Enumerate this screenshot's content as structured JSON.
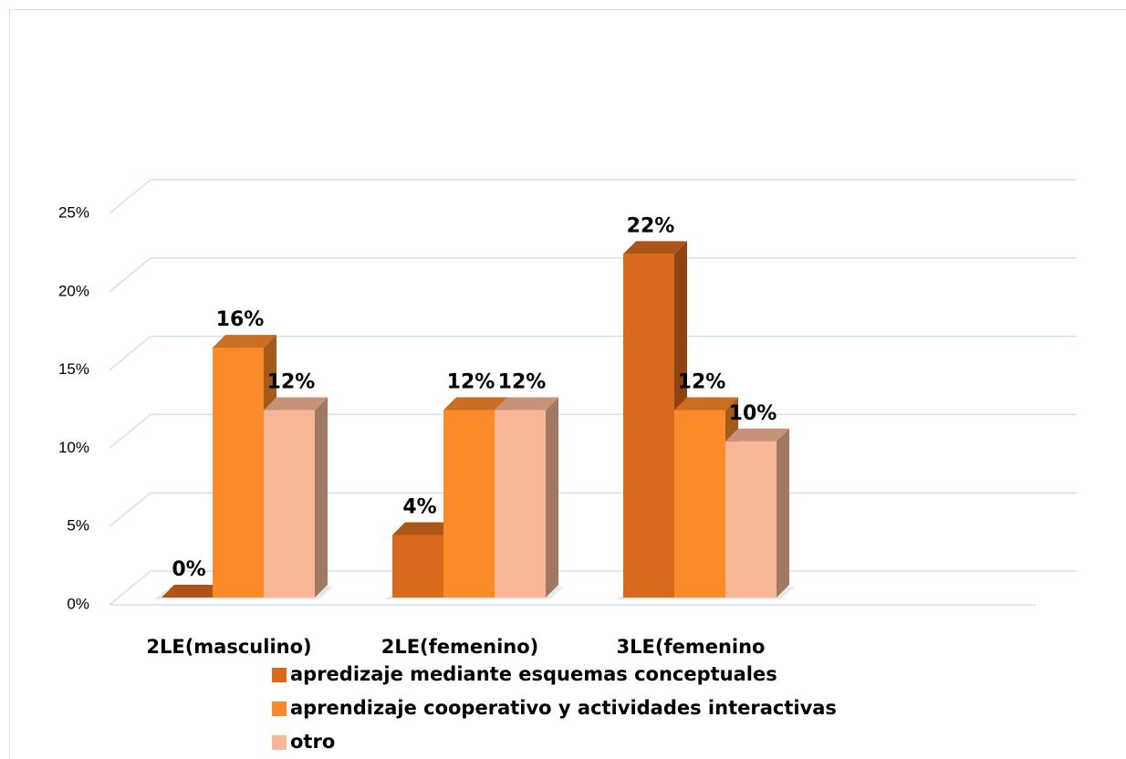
{
  "chart_data": {
    "type": "bar3d",
    "categories": [
      "2LE(masculino)",
      "2LE(femenino)",
      "3LE(femenino"
    ],
    "series": [
      {
        "name": "apredizaje mediante esquemas conceptuales",
        "color": "#d86a1c",
        "values": [
          0,
          4,
          22
        ],
        "value_labels": [
          "0%",
          "4%",
          "22%"
        ]
      },
      {
        "name": "aprendizaje cooperativo y actividades interactivas",
        "color": "#fb8a2a",
        "values": [
          16,
          12,
          12
        ],
        "value_labels": [
          "16%",
          "12%",
          "12%"
        ]
      },
      {
        "name": "otro",
        "color": "#f8b896",
        "values": [
          12,
          12,
          10
        ],
        "value_labels": [
          "12%",
          "12%",
          "10%"
        ]
      }
    ],
    "ylim": [
      0,
      25
    ],
    "yticks": [
      {
        "value": 0,
        "label": "0%"
      },
      {
        "value": 5,
        "label": "5%"
      },
      {
        "value": 10,
        "label": "10%"
      },
      {
        "value": 15,
        "label": "15%"
      },
      {
        "value": 20,
        "label": "20%"
      },
      {
        "value": 25,
        "label": "25%"
      }
    ],
    "grid": true,
    "legend": "bottom"
  }
}
